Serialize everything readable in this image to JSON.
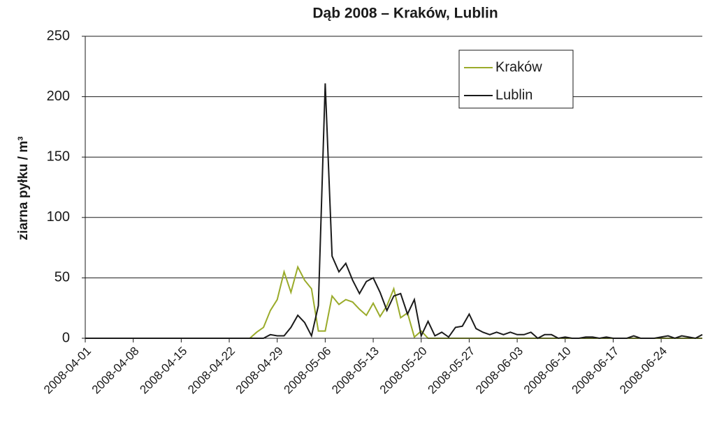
{
  "chart_data": {
    "type": "line",
    "title": "Dąb 2008 – Kraków, Lublin",
    "y_label": "ziarna pyłku / m³",
    "x": [
      "2008-04-01",
      "2008-04-02",
      "2008-04-03",
      "2008-04-04",
      "2008-04-05",
      "2008-04-06",
      "2008-04-07",
      "2008-04-08",
      "2008-04-09",
      "2008-04-10",
      "2008-04-11",
      "2008-04-12",
      "2008-04-13",
      "2008-04-14",
      "2008-04-15",
      "2008-04-16",
      "2008-04-17",
      "2008-04-18",
      "2008-04-19",
      "2008-04-20",
      "2008-04-21",
      "2008-04-22",
      "2008-04-23",
      "2008-04-24",
      "2008-04-25",
      "2008-04-26",
      "2008-04-27",
      "2008-04-28",
      "2008-04-29",
      "2008-04-30",
      "2008-05-01",
      "2008-05-02",
      "2008-05-03",
      "2008-05-04",
      "2008-05-05",
      "2008-05-06",
      "2008-05-07",
      "2008-05-08",
      "2008-05-09",
      "2008-05-10",
      "2008-05-11",
      "2008-05-12",
      "2008-05-13",
      "2008-05-14",
      "2008-05-15",
      "2008-05-16",
      "2008-05-17",
      "2008-05-18",
      "2008-05-19",
      "2008-05-20",
      "2008-05-21",
      "2008-05-22",
      "2008-05-23",
      "2008-05-24",
      "2008-05-25",
      "2008-05-26",
      "2008-05-27",
      "2008-05-28",
      "2008-05-29",
      "2008-05-30",
      "2008-05-31",
      "2008-06-01",
      "2008-06-02",
      "2008-06-03",
      "2008-06-04",
      "2008-06-05",
      "2008-06-06",
      "2008-06-07",
      "2008-06-08",
      "2008-06-09",
      "2008-06-10",
      "2008-06-11",
      "2008-06-12",
      "2008-06-13",
      "2008-06-14",
      "2008-06-15",
      "2008-06-16",
      "2008-06-17",
      "2008-06-18",
      "2008-06-19",
      "2008-06-20",
      "2008-06-21",
      "2008-06-22",
      "2008-06-23",
      "2008-06-24",
      "2008-06-25",
      "2008-06-26",
      "2008-06-27",
      "2008-06-28",
      "2008-06-29",
      "2008-06-30"
    ],
    "series": [
      {
        "name": "Kraków",
        "color": "#9aab2a",
        "values": [
          0,
          0,
          0,
          0,
          0,
          0,
          0,
          0,
          0,
          0,
          0,
          0,
          0,
          0,
          0,
          0,
          0,
          0,
          0,
          0,
          0,
          0,
          0,
          0,
          0,
          5,
          9,
          23,
          32,
          55,
          38,
          59,
          48,
          41,
          6,
          6,
          35,
          28,
          32,
          30,
          24,
          19,
          29,
          18,
          27,
          41,
          17,
          21,
          1,
          6,
          0,
          0,
          0,
          0,
          0,
          0,
          0,
          0,
          0,
          0,
          0,
          0,
          0,
          0,
          0,
          0,
          0,
          0,
          0,
          0,
          0,
          0,
          0,
          0,
          0,
          0,
          0,
          0,
          0,
          0,
          0,
          0,
          0,
          0,
          0,
          0,
          0,
          0,
          0,
          0,
          0
        ]
      },
      {
        "name": "Lublin",
        "color": "#1a1a1a",
        "values": [
          0,
          0,
          0,
          0,
          0,
          0,
          0,
          0,
          0,
          0,
          0,
          0,
          0,
          0,
          0,
          0,
          0,
          0,
          0,
          0,
          0,
          0,
          0,
          0,
          0,
          0,
          0,
          3,
          2,
          2,
          9,
          19,
          13,
          2,
          27,
          211,
          68,
          55,
          62,
          48,
          37,
          47,
          50,
          38,
          23,
          35,
          37,
          20,
          32,
          2,
          14,
          2,
          5,
          1,
          9,
          10,
          20,
          8,
          5,
          3,
          5,
          3,
          5,
          3,
          3,
          5,
          0,
          3,
          3,
          0,
          1,
          0,
          0,
          1,
          1,
          0,
          1,
          0,
          0,
          0,
          2,
          0,
          0,
          0,
          1,
          2,
          0,
          2,
          1,
          0,
          3
        ]
      }
    ],
    "xticks": [
      "2008-04-01",
      "2008-04-08",
      "2008-04-15",
      "2008-04-22",
      "2008-04-29",
      "2008-05-06",
      "2008-05-13",
      "2008-05-20",
      "2008-05-27",
      "2008-06-03",
      "2008-06-10",
      "2008-06-17",
      "2008-06-24"
    ],
    "ylim": [
      0,
      250
    ],
    "yticks": [
      0,
      50,
      100,
      150,
      200,
      250
    ],
    "grid": true
  }
}
